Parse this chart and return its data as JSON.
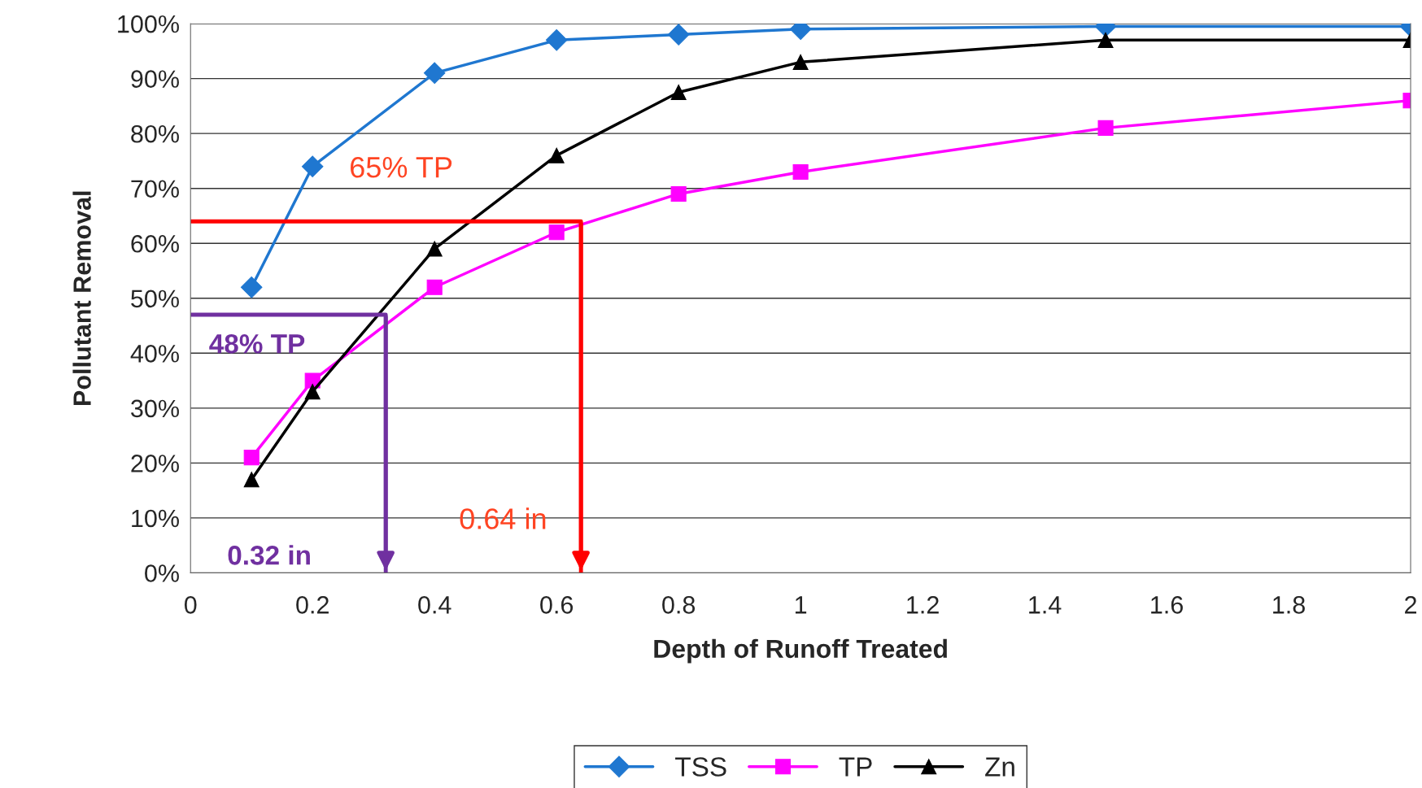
{
  "chart_data": {
    "type": "line",
    "xlabel": "Depth of Runoff Treated",
    "ylabel": "Pollutant Removal",
    "x": [
      0.1,
      0.2,
      0.4,
      0.6,
      0.8,
      1,
      1.5,
      2
    ],
    "series": [
      {
        "name": "TSS",
        "color": "#1f77d0",
        "marker": "diamond",
        "values": [
          52,
          74,
          91,
          97,
          98,
          99,
          99.5,
          99.5
        ]
      },
      {
        "name": "TP",
        "color": "#ff00ff",
        "marker": "square",
        "values": [
          21,
          35,
          52,
          62,
          69,
          73,
          81,
          86
        ]
      },
      {
        "name": "Zn",
        "color": "#000000",
        "marker": "triangle",
        "values": [
          17,
          33,
          59,
          76,
          87.5,
          93,
          97,
          97
        ]
      },
      {
        "type": "line",
        "color": "#ff0000",
        "marker": "none",
        "x": [
          0,
          0.64,
          0.64
        ],
        "values": [
          64,
          64,
          0
        ]
      },
      {
        "type": "line",
        "color": "#7030a0",
        "marker": "none",
        "x": [
          0,
          0.32,
          0.32
        ],
        "values": [
          47,
          47,
          0
        ]
      }
    ],
    "annotations": [
      "65% TP",
      "0.64 in",
      "48% TP",
      "0.32 in"
    ],
    "xlim": [
      0,
      2
    ],
    "xticks": [
      0,
      0.2,
      0.4,
      0.6,
      0.8,
      1,
      1.2,
      1.4,
      1.6,
      1.8,
      2
    ],
    "ylim": [
      0,
      100
    ],
    "yticks": [
      {
        "value": 0,
        "label": "0%"
      },
      {
        "value": 10,
        "label": "10%"
      },
      {
        "value": 20,
        "label": "20%"
      },
      {
        "value": 30,
        "label": "30%"
      },
      {
        "value": 40,
        "label": "40%"
      },
      {
        "value": 50,
        "label": "50%"
      },
      {
        "value": 60,
        "label": "60%"
      },
      {
        "value": 70,
        "label": "70%"
      },
      {
        "value": 80,
        "label": "80%"
      },
      {
        "value": 90,
        "label": "90%"
      },
      {
        "value": 100,
        "label": "100%"
      }
    ],
    "grid": "y",
    "legend": "bottom"
  }
}
